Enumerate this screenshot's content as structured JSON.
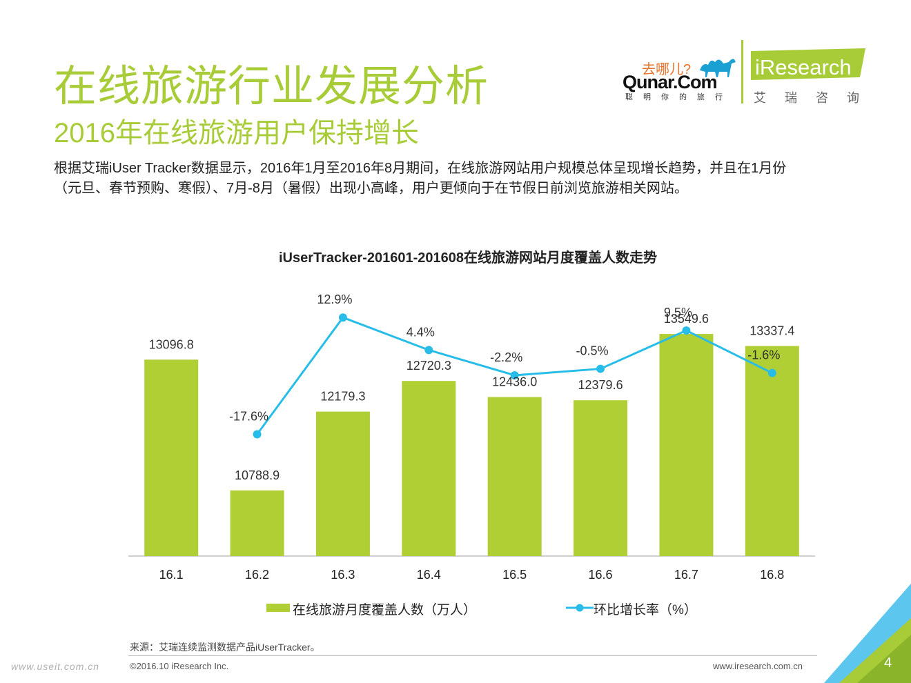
{
  "header": {
    "title": "在线旅游行业发展分析",
    "subtitle": "2016年在线旅游用户保持增长"
  },
  "description": {
    "line1": "根据艾瑞iUser Tracker数据显示，2016年1月至2016年8月期间，在线旅游网站用户规模总体呈现增长趋势，并且在1月份",
    "line2": "（元旦、春节预购、寒假）、7月-8月（暑假）出现小高峰，用户更倾向于在节假日前浏览旅游相关网站。"
  },
  "logos": {
    "qunar_cn": "去哪儿?",
    "qunar_en": "Qunar.Com",
    "qunar_slogan": "聪明你的旅行",
    "iresearch_en": "iResearch",
    "iresearch_cn": "艾瑞咨询"
  },
  "chart_data": {
    "type": "bar",
    "title": "iUserTracker-201601-201608在线旅游网站月度覆盖人数走势",
    "categories": [
      "16.1",
      "16.2",
      "16.3",
      "16.4",
      "16.5",
      "16.6",
      "16.7",
      "16.8"
    ],
    "series": [
      {
        "name": "在线旅游月度覆盖人数（万人）",
        "type": "bar",
        "values": [
          13096.8,
          10788.9,
          12179.3,
          12720.3,
          12436.0,
          12379.6,
          13549.6,
          13337.4
        ],
        "labels": [
          "13096.8",
          "10788.9",
          "12179.3",
          "12720.3",
          "12436.0",
          "12379.6",
          "13549.6",
          "13337.4"
        ]
      },
      {
        "name": "环比增长率（%）",
        "type": "line",
        "values": [
          null,
          -17.6,
          12.9,
          4.4,
          -2.2,
          -0.5,
          9.5,
          -1.6
        ],
        "labels": [
          "",
          "-17.6%",
          "12.9%",
          "4.4%",
          "-2.2%",
          "-0.5%",
          "9.5%",
          "-1.6%"
        ]
      }
    ],
    "bar_ylim": [
      0,
      14000
    ],
    "line_ylim": [
      -25,
      15
    ],
    "legend_position": "bottom",
    "grid": false,
    "colors": {
      "bar": "#b0cf34",
      "line": "#27bde8"
    }
  },
  "footer": {
    "source": "来源：艾瑞连续监测数据产品iUserTracker。",
    "copyright": "©2016.10 iResearch Inc.",
    "website": "www.iresearch.com.cn",
    "watermark": "www.useit.com.cn",
    "page_number": "4"
  }
}
